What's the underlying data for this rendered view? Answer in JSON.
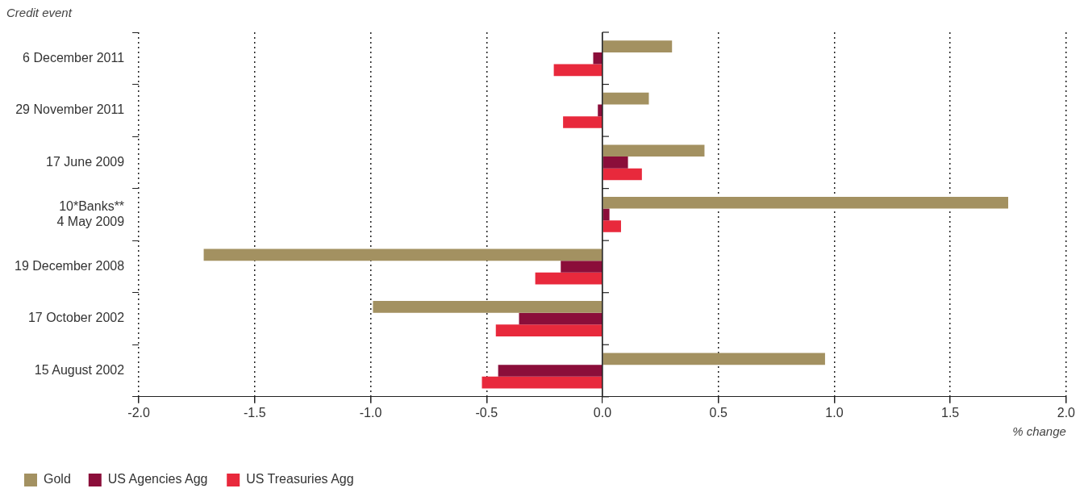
{
  "chart_data": {
    "type": "bar",
    "orientation": "horizontal",
    "ylabel": "Credit event",
    "xlabel": "% change",
    "categories": [
      "6 December 2011",
      "29 November 2011",
      "17 June 2009",
      "10*Banks**\n4 May 2009",
      "19 December 2008",
      "17 October 2002",
      "15 August 2002"
    ],
    "series": [
      {
        "name": "Gold",
        "color": "#a39161",
        "values": [
          0.3,
          0.2,
          0.44,
          1.75,
          -1.72,
          -0.99,
          0.96
        ]
      },
      {
        "name": "US Agencies Agg",
        "color": "#8b0e3a",
        "values": [
          -0.04,
          -0.02,
          0.11,
          0.03,
          -0.18,
          -0.36,
          -0.45
        ]
      },
      {
        "name": "US Treasuries Agg",
        "color": "#e8293c",
        "values": [
          -0.21,
          -0.17,
          0.17,
          0.08,
          -0.29,
          -0.46,
          -0.52
        ]
      }
    ],
    "xlim": [
      -2,
      2
    ],
    "xticks": [
      {
        "value": -2,
        "label": "-2.0"
      },
      {
        "value": -1.5,
        "label": "-1.5"
      },
      {
        "value": -1,
        "label": "-1.0"
      },
      {
        "value": -0.5,
        "label": "-0.5"
      },
      {
        "value": 0,
        "label": "0.0"
      },
      {
        "value": 0.5,
        "label": "0.5"
      },
      {
        "value": 1,
        "label": "1.0"
      },
      {
        "value": 1.5,
        "label": "1.5"
      },
      {
        "value": 2,
        "label": "2.0"
      }
    ],
    "grid": "x",
    "legend": "bottom left"
  }
}
